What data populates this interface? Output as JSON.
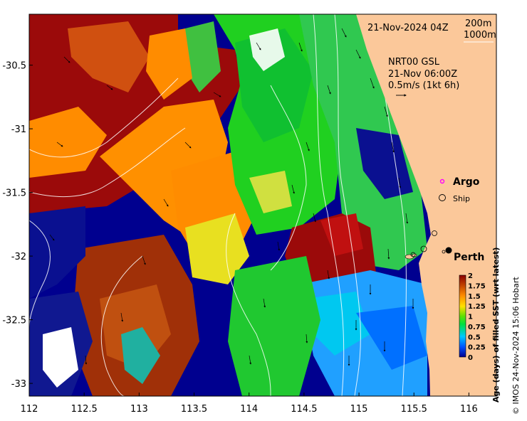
{
  "map": {
    "timestamp": "21-Nov-2024 04Z",
    "bathymetry_legend": [
      "200m",
      "1000m"
    ],
    "current_model": {
      "name": "NRT00 GSL",
      "time": "21-Nov 06:00Z",
      "scale": "0.5m/s (1kt 6h)"
    },
    "lon_ticks": [
      "112",
      "112.5",
      "113",
      "113.5",
      "114",
      "114.5",
      "115",
      "115.5",
      "116"
    ],
    "lat_ticks": [
      "-30.5",
      "-31",
      "-31.5",
      "-32",
      "-32.5",
      "-33"
    ],
    "lon_range": [
      112,
      116.25
    ],
    "lat_range": [
      -33.1,
      -30.1
    ]
  },
  "legend": {
    "argo_label": "Argo",
    "ship_label": "Ship",
    "argo_color": "#ff00ff"
  },
  "place": {
    "name": "Perth"
  },
  "colorbar": {
    "title": "Age (days) of filled SST (wrt latest)",
    "ticks": [
      "2",
      "1.75",
      "1.5",
      "1.25",
      "1",
      "0.75",
      "0.5",
      "0.25",
      "0"
    ],
    "colors": [
      "#00008f",
      "#0060ff",
      "#00d0ff",
      "#00e000",
      "#a0e000",
      "#ffe000",
      "#ff8000",
      "#c04000",
      "#8b0000"
    ]
  },
  "credit": "© IMOS 24-Nov-2024 15:06 Hobart"
}
